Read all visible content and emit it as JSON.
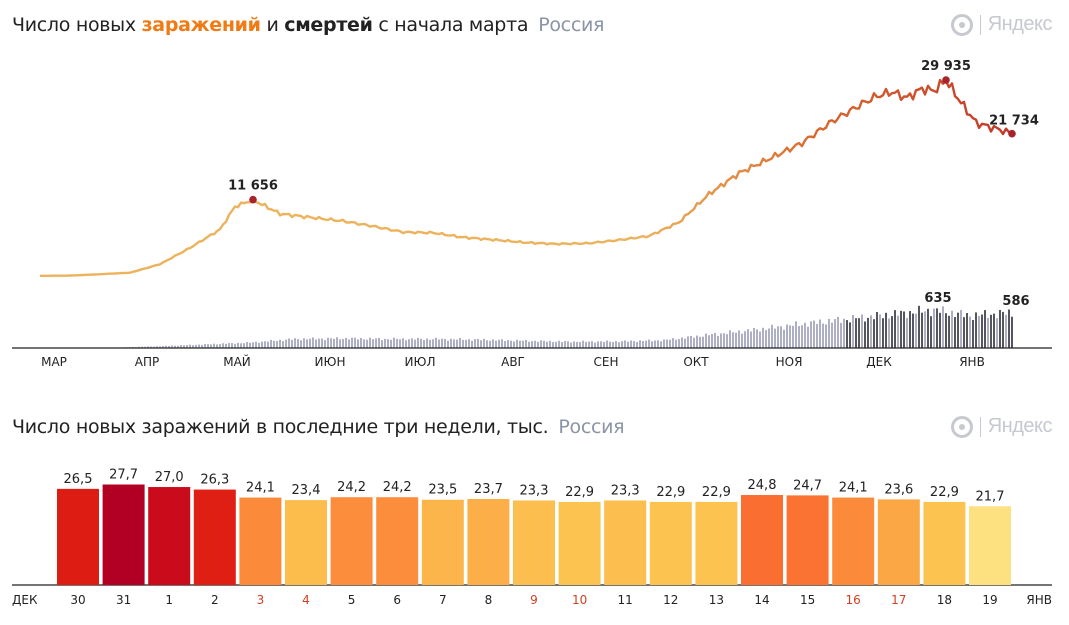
{
  "top": {
    "title_prefix": "Число новых ",
    "title_infections": "заражений",
    "title_and": " и ",
    "title_deaths": "смертей",
    "title_suffix": " с начала марта",
    "region": "Россия",
    "logo": "Яндекс"
  },
  "bottom": {
    "title": "Число новых заражений в последние три недели, тыс.",
    "region": "Россия",
    "logo": "Яндекс"
  },
  "colors": {
    "line_low": "#ecb25c",
    "line_high": "#c0392b",
    "marker": "#a8232a",
    "death_bars": "#9a9bb6",
    "death_bars_dark": "#2d2d3a",
    "red_label": "#d2401e"
  },
  "chart_data": [
    {
      "type": "line",
      "series": [
        {
          "name": "заражений",
          "x": [
            "2020-03-01",
            "2020-03-10",
            "2020-03-20",
            "2020-03-31",
            "2020-04-10",
            "2020-04-20",
            "2020-04-30",
            "2020-05-05",
            "2020-05-11",
            "2020-05-20",
            "2020-05-31",
            "2020-06-10",
            "2020-06-20",
            "2020-06-30",
            "2020-07-10",
            "2020-07-20",
            "2020-07-31",
            "2020-08-10",
            "2020-08-20",
            "2020-08-31",
            "2020-09-10",
            "2020-09-20",
            "2020-09-30",
            "2020-10-10",
            "2020-10-20",
            "2020-10-31",
            "2020-11-10",
            "2020-11-20",
            "2020-11-30",
            "2020-12-05",
            "2020-12-10",
            "2020-12-15",
            "2020-12-20",
            "2020-12-24",
            "2020-12-28",
            "2021-01-02",
            "2021-01-07",
            "2021-01-12",
            "2021-01-16",
            "2021-01-19"
          ],
          "y": [
            30,
            50,
            250,
            500,
            1800,
            4300,
            7100,
            10600,
            11656,
            9500,
            8900,
            8400,
            7600,
            6700,
            6600,
            5900,
            5500,
            5100,
            4900,
            5000,
            5500,
            6100,
            8200,
            12500,
            15700,
            18100,
            20300,
            23600,
            26300,
            27500,
            28100,
            27200,
            28600,
            28300,
            29935,
            26500,
            23400,
            22700,
            22200,
            21734
          ]
        }
      ],
      "annotations": [
        {
          "x": "2020-05-11",
          "label": "11 656"
        },
        {
          "x": "2020-12-28",
          "label": "29 935"
        },
        {
          "x": "2021-01-19",
          "label": "21 734"
        }
      ],
      "months": [
        "МАР",
        "АПР",
        "МАЙ",
        "ИЮН",
        "ИЮЛ",
        "АВГ",
        "СЕН",
        "ОКТ",
        "НОЯ",
        "ДЕК",
        "ЯНВ"
      ],
      "ylim": [
        0,
        31000
      ]
    },
    {
      "type": "bar",
      "series": [
        {
          "name": "смертей",
          "x": [
            "2020-03-01",
            "2020-03-25",
            "2020-04-10",
            "2020-04-25",
            "2020-05-10",
            "2020-05-25",
            "2020-06-10",
            "2020-06-25",
            "2020-07-10",
            "2020-07-25",
            "2020-08-10",
            "2020-08-25",
            "2020-09-10",
            "2020-09-25",
            "2020-10-10",
            "2020-10-25",
            "2020-11-10",
            "2020-11-25",
            "2020-12-10",
            "2020-12-24",
            "2021-01-05",
            "2021-01-19"
          ],
          "y": [
            0,
            5,
            30,
            60,
            90,
            150,
            160,
            150,
            150,
            140,
            120,
            105,
            110,
            130,
            220,
            300,
            400,
            480,
            560,
            635,
            540,
            586
          ]
        }
      ],
      "annotations": [
        {
          "x": "2020-12-24",
          "label": "635"
        },
        {
          "x": "2021-01-19",
          "label": "586"
        }
      ],
      "ylim": [
        0,
        650
      ]
    },
    {
      "type": "bar",
      "categories": [
        "30",
        "31",
        "1",
        "2",
        "3",
        "4",
        "5",
        "6",
        "7",
        "8",
        "9",
        "10",
        "11",
        "12",
        "13",
        "14",
        "15",
        "16",
        "17",
        "18",
        "19"
      ],
      "red_categories": [
        3,
        4,
        9,
        10,
        16,
        17
      ],
      "values": [
        26.5,
        27.7,
        27.0,
        26.3,
        24.1,
        23.4,
        24.2,
        24.2,
        23.5,
        23.7,
        23.3,
        22.9,
        23.3,
        22.9,
        22.9,
        24.8,
        24.7,
        24.1,
        23.6,
        22.9,
        21.7
      ],
      "value_labels": [
        "26,5",
        "27,7",
        "27,0",
        "26,3",
        "24,1",
        "23,4",
        "24,2",
        "24,2",
        "23,5",
        "23,7",
        "23,3",
        "22,9",
        "23,3",
        "22,9",
        "22,9",
        "24,8",
        "24,7",
        "24,1",
        "23,6",
        "22,9",
        "21,7"
      ],
      "colors": [
        "#dd1c14",
        "#b10024",
        "#ca0b1c",
        "#df1f14",
        "#fb8b3b",
        "#fcbd4d",
        "#fb8d3c",
        "#fb8d3c",
        "#fcb54b",
        "#fcaf48",
        "#fcbe4e",
        "#fcc350",
        "#fcbe4e",
        "#fcc350",
        "#fcc350",
        "#fa6e31",
        "#fa7333",
        "#fb8b3b",
        "#fca745",
        "#fcc350",
        "#fde07f"
      ],
      "x_start_label": "ДЕК",
      "x_end_label": "ЯНВ",
      "ylim": [
        0,
        28
      ]
    }
  ]
}
